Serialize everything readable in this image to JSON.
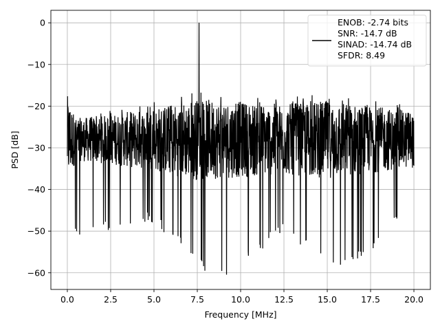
{
  "chart_data": {
    "type": "line",
    "xlabel": "Frequency [MHz]",
    "ylabel": "PSD [dB]",
    "xlim": [
      -0.95,
      20.95
    ],
    "ylim": [
      -64,
      3
    ],
    "x_ticks": [
      0.0,
      2.5,
      5.0,
      7.5,
      10.0,
      12.5,
      15.0,
      17.5,
      20.0
    ],
    "x_tick_labels": [
      "0.0",
      "2.5",
      "5.0",
      "7.5",
      "10.0",
      "12.5",
      "15.0",
      "17.5",
      "20.0"
    ],
    "y_ticks": [
      0,
      -10,
      -20,
      -30,
      -40,
      -50,
      -60
    ],
    "y_tick_labels": [
      "0",
      "−10",
      "−20",
      "−30",
      "−40",
      "−50",
      "−60"
    ],
    "grid": true,
    "legend_position": "top-right",
    "series": [
      {
        "name": "ENOB: -2.74 bits\nSNR: -14.7 dB\nSINAD: -14.74 dB\nSFDR: 8.49",
        "color": "#000000",
        "peak": {
          "x": 7.6,
          "y": 0
        },
        "noise_upper_envelope": [
          [
            0.0,
            -15.5
          ],
          [
            0.5,
            -22
          ],
          [
            2.5,
            -21
          ],
          [
            5.0,
            -19
          ],
          [
            7.4,
            -16.5
          ],
          [
            12.5,
            -18
          ],
          [
            15.0,
            -17
          ],
          [
            17.5,
            -18.5
          ],
          [
            20.0,
            -20
          ]
        ],
        "noise_lower_envelope": [
          [
            0.0,
            -40
          ],
          [
            0.5,
            -52
          ],
          [
            2.5,
            -50
          ],
          [
            5.0,
            -48
          ],
          [
            7.9,
            -60
          ],
          [
            8.8,
            -60.5
          ],
          [
            9.6,
            -60.5
          ],
          [
            12.5,
            -50
          ],
          [
            15.6,
            -61
          ],
          [
            17.5,
            -55
          ],
          [
            20.0,
            -45
          ]
        ],
        "noise_median": -28
      }
    ],
    "legend_lines": [
      "ENOB: -2.74 bits",
      "SNR: -14.7 dB",
      "SINAD: -14.74 dB",
      "SFDR: 8.49"
    ]
  }
}
